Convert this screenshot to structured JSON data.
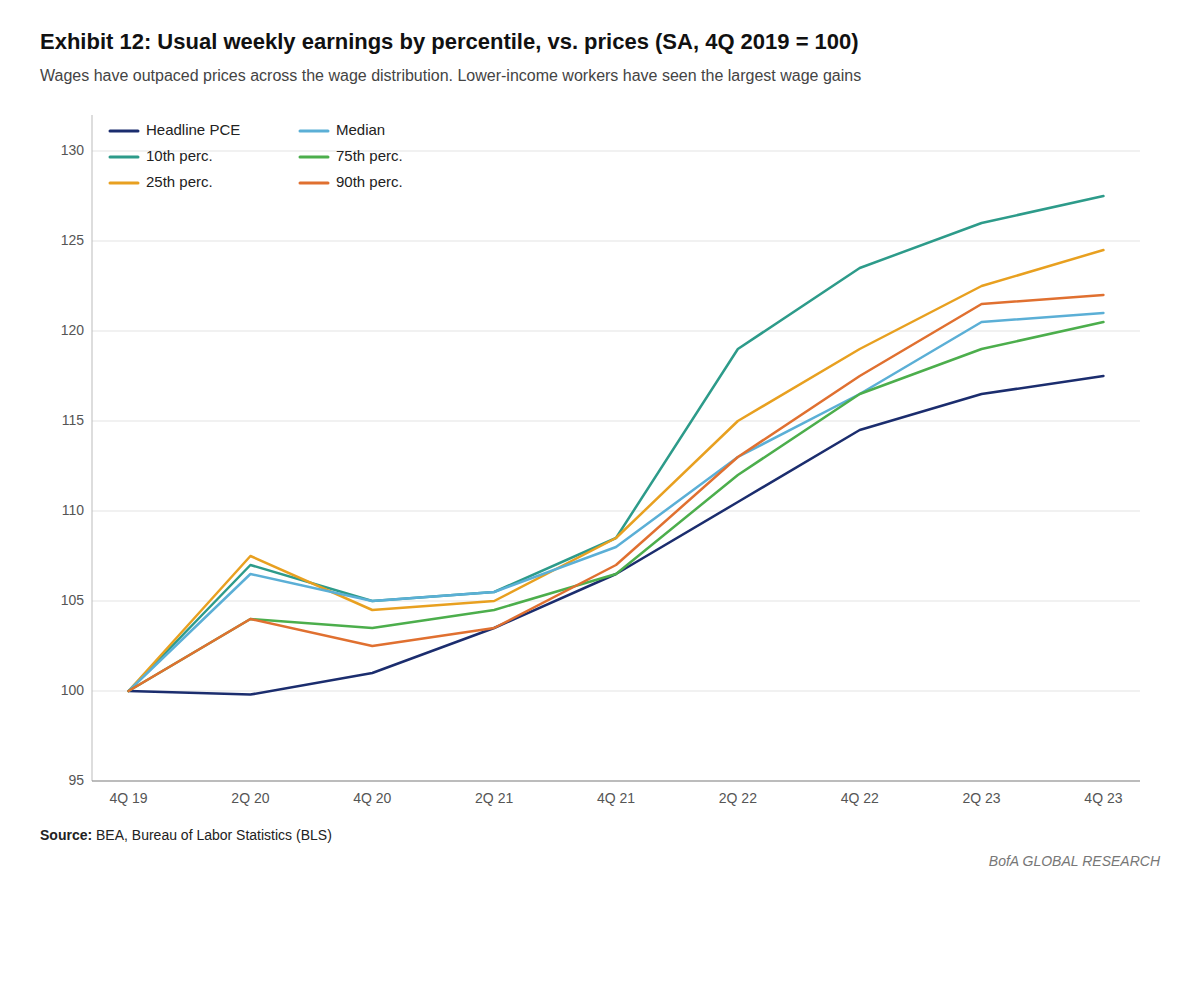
{
  "chart_data": {
    "type": "line",
    "title": "Exhibit 12: Usual weekly earnings by percentile, vs. prices (SA, 4Q 2019 = 100)",
    "subtitle": "Wages have outpaced prices across the wage distribution. Lower-income workers have seen the largest wage gains",
    "annotations": [
      "Source:",
      "BEA, Bureau of Labor Statistics (BLS)",
      "BofA GLOBAL RESEARCH"
    ],
    "categories": [
      "4Q 19",
      "2Q 20",
      "4Q 20",
      "2Q 21",
      "4Q 21",
      "2Q 22",
      "4Q 22",
      "2Q 23",
      "4Q 23"
    ],
    "series": [
      {
        "name": "Headline PCE",
        "color": "#1b2d6e",
        "values": [
          100.0,
          99.8,
          101.0,
          103.5,
          106.5,
          110.5,
          114.5,
          116.5,
          117.5
        ]
      },
      {
        "name": "10th perc.",
        "color": "#2d9b8a",
        "values": [
          100.0,
          107.0,
          105.0,
          105.5,
          108.5,
          119.0,
          123.5,
          126.0,
          127.5
        ]
      },
      {
        "name": "25th perc.",
        "color": "#e8a020",
        "values": [
          100.0,
          107.5,
          104.5,
          105.0,
          108.5,
          115.0,
          119.0,
          122.5,
          124.5
        ]
      },
      {
        "name": "Median",
        "color": "#5bafd6",
        "values": [
          100.0,
          106.5,
          105.0,
          105.5,
          108.0,
          113.0,
          116.5,
          120.5,
          121.0
        ]
      },
      {
        "name": "75th perc.",
        "color": "#4cae4c",
        "values": [
          100.0,
          104.0,
          103.5,
          104.5,
          106.5,
          112.0,
          116.5,
          119.0,
          120.5
        ]
      },
      {
        "name": "90th perc.",
        "color": "#e07030",
        "values": [
          100.0,
          104.0,
          102.5,
          103.5,
          107.0,
          113.0,
          117.5,
          121.5,
          122.0
        ]
      }
    ],
    "ylim": [
      95,
      132
    ],
    "yticks": [
      95,
      100,
      105,
      110,
      115,
      120,
      125,
      130
    ],
    "grid": true,
    "legend": "upper left"
  }
}
